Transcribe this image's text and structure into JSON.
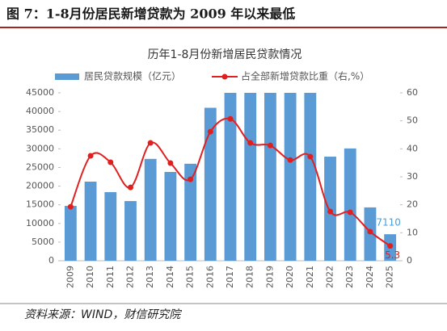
{
  "header": "图 7：1-8月份居民新增贷款为 2009 年以来最低",
  "source": "资料来源：WIND，财信研究院",
  "chart_data": {
    "type": "bar",
    "title": "历年1-8月份新增居民贷款情况",
    "categories": [
      "2009",
      "2010",
      "2011",
      "2012",
      "2013",
      "2014",
      "2015",
      "2016",
      "2017",
      "2018",
      "2019",
      "2020",
      "2021",
      "2022",
      "2023",
      "2024",
      "2025"
    ],
    "series": [
      {
        "name": "居民贷款规模（亿元）",
        "type": "bar",
        "axis": "y",
        "color": "#5b9bd5",
        "values": [
          14700,
          21200,
          18400,
          16000,
          27300,
          23800,
          26000,
          41000,
          45000,
          45000,
          45000,
          45000,
          45000,
          27900,
          30100,
          14300,
          7110
        ]
      },
      {
        "name": "占全部新增贷款比重（右,%）",
        "type": "line",
        "axis": "y2",
        "color": "#e02020",
        "values": [
          19.3,
          37.5,
          35.2,
          26.2,
          42.1,
          34.9,
          29.1,
          46.1,
          50.7,
          42.1,
          41.2,
          36.0,
          37.2,
          17.6,
          17.3,
          10.4,
          5.3
        ]
      }
    ],
    "ylim": [
      0,
      45000
    ],
    "yticks": [
      0,
      5000,
      10000,
      15000,
      20000,
      25000,
      30000,
      35000,
      40000,
      45000
    ],
    "y2lim": [
      0,
      60
    ],
    "y2ticks": [
      0,
      10,
      20,
      30,
      40,
      50,
      60
    ],
    "grid": false
  }
}
